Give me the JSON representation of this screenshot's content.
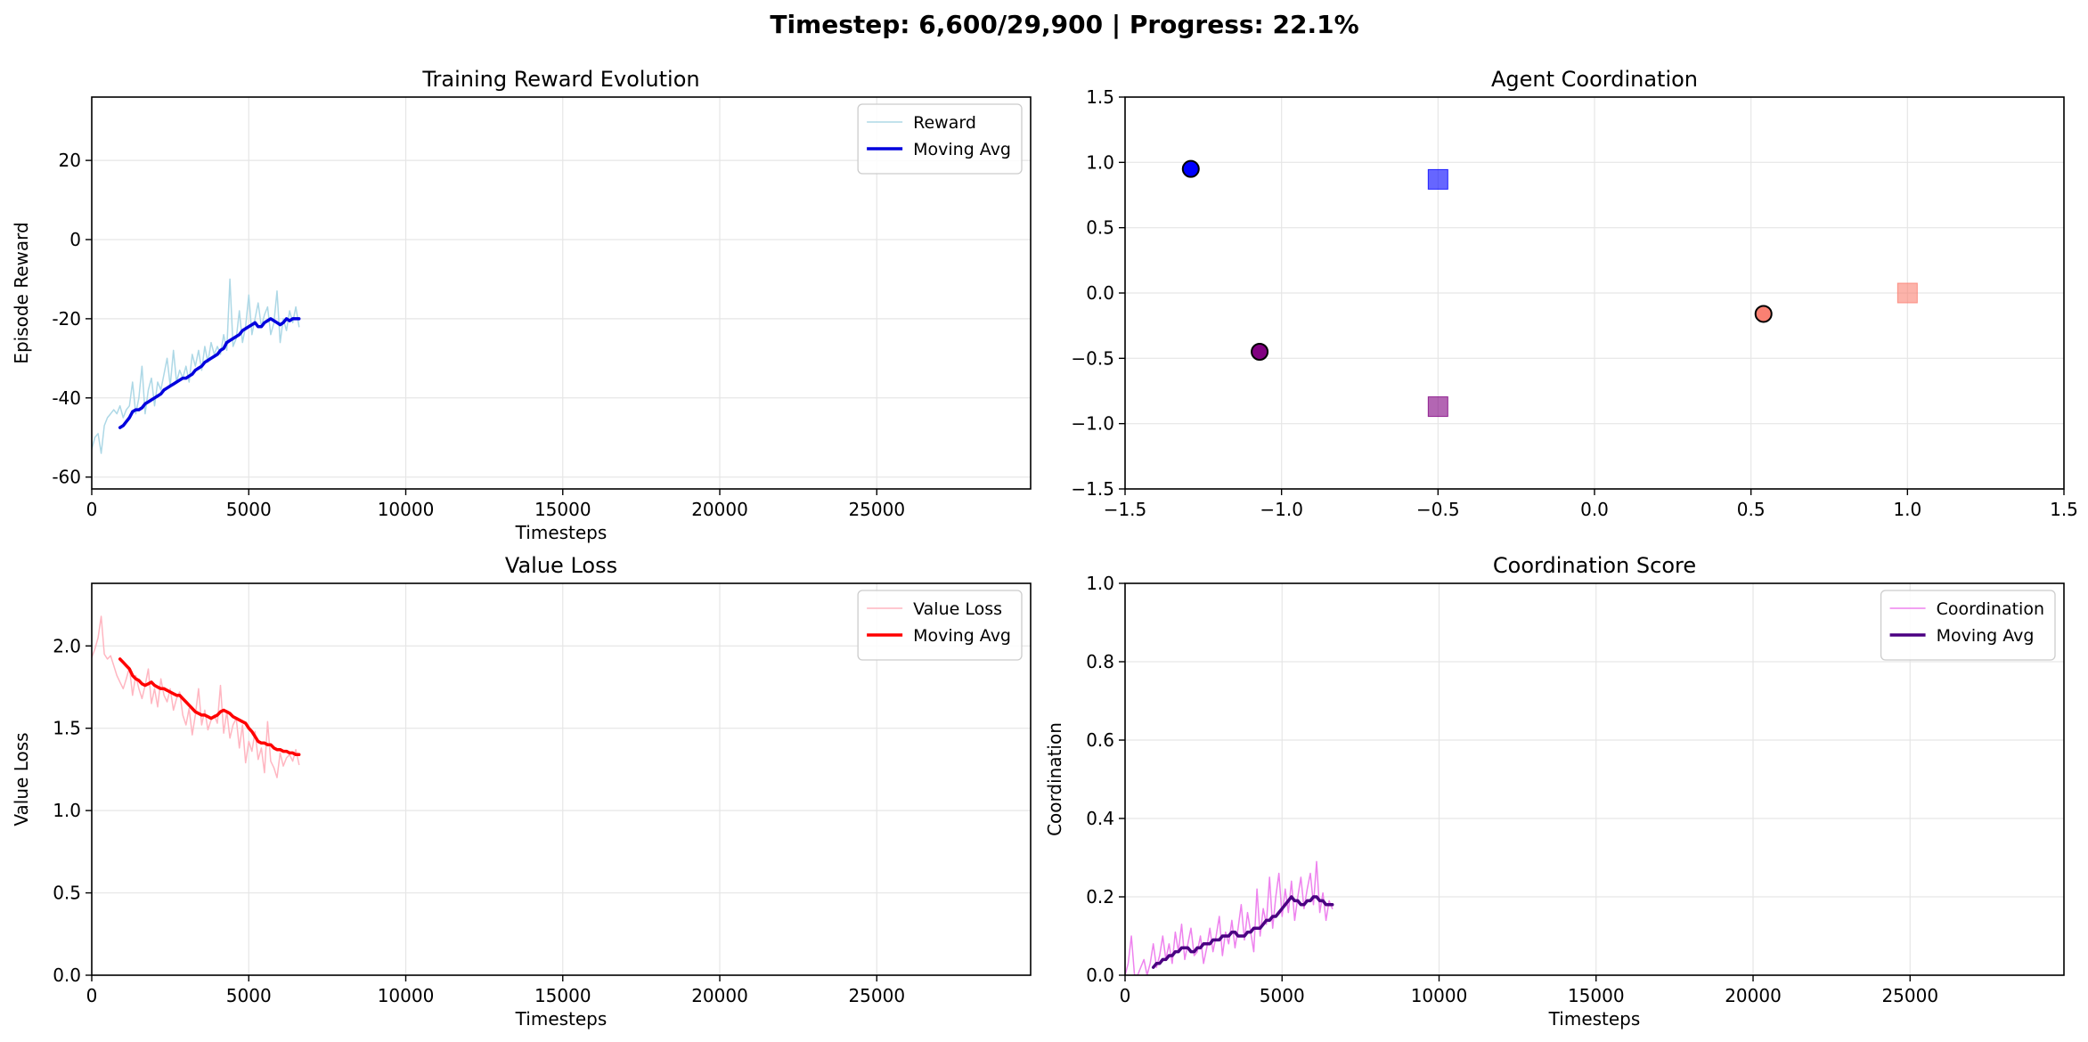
{
  "figure": {
    "suptitle": "Timestep: 6,600/29,900 | Progress: 22.1%"
  },
  "chart_data": [
    {
      "id": "reward",
      "type": "line",
      "title": "Training Reward Evolution",
      "xlabel": "Timesteps",
      "ylabel": "Episode Reward",
      "xlim": [
        0,
        29900
      ],
      "ylim": [
        -63,
        36
      ],
      "xticks": [
        0,
        5000,
        10000,
        15000,
        20000,
        25000
      ],
      "yticks": [
        -60,
        -40,
        -20,
        0,
        20
      ],
      "grid": true,
      "legend_loc": "top-right",
      "series": [
        {
          "name": "Reward",
          "color": "#add8e6",
          "width": 1.5,
          "x": [
            0,
            100,
            200,
            300,
            400,
            500,
            600,
            700,
            800,
            900,
            1000,
            1100,
            1200,
            1300,
            1400,
            1500,
            1600,
            1700,
            1800,
            1900,
            2000,
            2100,
            2200,
            2300,
            2400,
            2500,
            2600,
            2700,
            2800,
            2900,
            3000,
            3100,
            3200,
            3300,
            3400,
            3500,
            3600,
            3700,
            3800,
            3900,
            4000,
            4100,
            4200,
            4300,
            4400,
            4500,
            4600,
            4700,
            4800,
            4900,
            5000,
            5100,
            5200,
            5300,
            5400,
            5500,
            5600,
            5700,
            5800,
            5900,
            6000,
            6100,
            6200,
            6300,
            6400,
            6500,
            6600
          ],
          "y": [
            -53,
            -50,
            -49,
            -54,
            -47,
            -45,
            -44,
            -43,
            -44,
            -42,
            -45,
            -43,
            -42,
            -36,
            -44,
            -40,
            -32,
            -44,
            -38,
            -35,
            -42,
            -36,
            -38,
            -34,
            -30,
            -37,
            -28,
            -36,
            -33,
            -35,
            -32,
            -36,
            -29,
            -32,
            -28,
            -33,
            -27,
            -31,
            -26,
            -29,
            -27,
            -29,
            -24,
            -28,
            -10,
            -27,
            -25,
            -18,
            -26,
            -22,
            -14,
            -24,
            -20,
            -16,
            -22,
            -19,
            -17,
            -24,
            -21,
            -13,
            -26,
            -20,
            -23,
            -18,
            -21,
            -17,
            -22
          ]
        },
        {
          "name": "Moving Avg",
          "color": "#0000dd",
          "width": 3.5,
          "x": [
            900,
            1000,
            1100,
            1200,
            1300,
            1400,
            1500,
            1600,
            1700,
            1800,
            1900,
            2000,
            2100,
            2200,
            2300,
            2400,
            2500,
            2600,
            2700,
            2800,
            2900,
            3000,
            3100,
            3200,
            3300,
            3400,
            3500,
            3600,
            3700,
            3800,
            3900,
            4000,
            4100,
            4200,
            4300,
            4400,
            4500,
            4600,
            4700,
            4800,
            4900,
            5000,
            5100,
            5200,
            5300,
            5400,
            5500,
            5600,
            5700,
            5800,
            5900,
            6000,
            6100,
            6200,
            6300,
            6400,
            6500,
            6600
          ],
          "y": [
            -47.5,
            -47,
            -46,
            -45,
            -43.5,
            -43,
            -43,
            -42.5,
            -41.5,
            -41,
            -40.5,
            -40,
            -39.5,
            -39,
            -38,
            -37.5,
            -37,
            -36.5,
            -36,
            -35.5,
            -35,
            -35,
            -34.5,
            -34,
            -33,
            -32.5,
            -32,
            -31,
            -30.5,
            -30,
            -29.5,
            -29,
            -28,
            -27.5,
            -26,
            -25.5,
            -25,
            -24.5,
            -24,
            -23,
            -22.5,
            -22,
            -21.5,
            -21,
            -22,
            -22,
            -21,
            -20.5,
            -20,
            -20.5,
            -21,
            -21.5,
            -21,
            -20,
            -20.5,
            -20,
            -20,
            -20
          ]
        }
      ]
    },
    {
      "id": "coord",
      "type": "scatter",
      "title": "Agent Coordination",
      "xlim": [
        -1.5,
        1.5
      ],
      "ylim": [
        -1.5,
        1.5
      ],
      "xticks": [
        -1.5,
        -1.0,
        -0.5,
        0.0,
        0.5,
        1.0,
        1.5
      ],
      "yticks": [
        -1.5,
        -1.0,
        -0.5,
        0.0,
        0.5,
        1.0,
        1.5
      ],
      "xtick_labels": [
        "−1.5",
        "−1.0",
        "−0.5",
        "0.0",
        "0.5",
        "1.0",
        "1.5"
      ],
      "ytick_labels": [
        "−1.5",
        "−1.0",
        "−0.5",
        "0.0",
        "0.5",
        "1.0",
        "1.5"
      ],
      "grid": true,
      "points": [
        {
          "shape": "square",
          "x": -0.5,
          "y": 0.87,
          "color": "#0000ff",
          "alpha": 0.6
        },
        {
          "shape": "square",
          "x": -0.5,
          "y": -0.87,
          "color": "#800080",
          "alpha": 0.6
        },
        {
          "shape": "square",
          "x": 1.0,
          "y": 0.0,
          "color": "#fa8072",
          "alpha": 0.6
        },
        {
          "shape": "circle",
          "x": -1.29,
          "y": 0.95,
          "color": "#0000ff",
          "alpha": 1.0
        },
        {
          "shape": "circle",
          "x": -1.07,
          "y": -0.45,
          "color": "#800080",
          "alpha": 1.0
        },
        {
          "shape": "circle",
          "x": 0.54,
          "y": -0.16,
          "color": "#fa8072",
          "alpha": 1.0
        }
      ]
    },
    {
      "id": "loss",
      "type": "line",
      "title": "Value Loss",
      "xlabel": "Timesteps",
      "ylabel": "Value Loss",
      "xlim": [
        0,
        29900
      ],
      "ylim": [
        0,
        2.38
      ],
      "xticks": [
        0,
        5000,
        10000,
        15000,
        20000,
        25000
      ],
      "yticks": [
        0.0,
        0.5,
        1.0,
        1.5,
        2.0
      ],
      "ytick_labels": [
        "0.0",
        "0.5",
        "1.0",
        "1.5",
        "2.0"
      ],
      "grid": true,
      "legend_loc": "top-right",
      "series": [
        {
          "name": "Value Loss",
          "color": "#ffb6c1",
          "width": 1.5,
          "x": [
            0,
            100,
            200,
            300,
            400,
            500,
            600,
            700,
            800,
            900,
            1000,
            1100,
            1200,
            1300,
            1400,
            1500,
            1600,
            1700,
            1800,
            1900,
            2000,
            2100,
            2200,
            2300,
            2400,
            2500,
            2600,
            2700,
            2800,
            2900,
            3000,
            3100,
            3200,
            3300,
            3400,
            3500,
            3600,
            3700,
            3800,
            3900,
            4000,
            4100,
            4200,
            4300,
            4400,
            4500,
            4600,
            4700,
            4800,
            4900,
            5000,
            5100,
            5200,
            5300,
            5400,
            5500,
            5600,
            5700,
            5800,
            5900,
            6000,
            6100,
            6200,
            6300,
            6400,
            6500,
            6600
          ],
          "y": [
            1.93,
            1.98,
            2.05,
            2.18,
            1.95,
            1.92,
            1.94,
            1.88,
            1.82,
            1.78,
            1.74,
            1.8,
            1.87,
            1.7,
            1.82,
            1.74,
            1.68,
            1.76,
            1.86,
            1.65,
            1.74,
            1.63,
            1.8,
            1.7,
            1.66,
            1.74,
            1.61,
            1.68,
            1.72,
            1.58,
            1.52,
            1.62,
            1.46,
            1.58,
            1.74,
            1.52,
            1.61,
            1.49,
            1.55,
            1.58,
            1.53,
            1.76,
            1.47,
            1.6,
            1.44,
            1.52,
            1.56,
            1.38,
            1.52,
            1.29,
            1.42,
            1.36,
            1.48,
            1.31,
            1.38,
            1.23,
            1.54,
            1.3,
            1.26,
            1.2,
            1.35,
            1.27,
            1.32,
            1.34,
            1.3,
            1.37,
            1.28
          ]
        },
        {
          "name": "Moving Avg",
          "color": "#ff0000",
          "width": 3.5,
          "x": [
            900,
            1000,
            1100,
            1200,
            1300,
            1400,
            1500,
            1600,
            1700,
            1800,
            1900,
            2000,
            2100,
            2200,
            2300,
            2400,
            2500,
            2600,
            2700,
            2800,
            2900,
            3000,
            3100,
            3200,
            3300,
            3400,
            3500,
            3600,
            3700,
            3800,
            3900,
            4000,
            4100,
            4200,
            4300,
            4400,
            4500,
            4600,
            4700,
            4800,
            4900,
            5000,
            5100,
            5200,
            5300,
            5400,
            5500,
            5600,
            5700,
            5800,
            5900,
            6000,
            6100,
            6200,
            6300,
            6400,
            6500,
            6600
          ],
          "y": [
            1.92,
            1.9,
            1.88,
            1.86,
            1.82,
            1.8,
            1.79,
            1.77,
            1.76,
            1.77,
            1.78,
            1.76,
            1.75,
            1.74,
            1.74,
            1.73,
            1.72,
            1.71,
            1.7,
            1.7,
            1.68,
            1.66,
            1.64,
            1.62,
            1.6,
            1.59,
            1.58,
            1.58,
            1.57,
            1.56,
            1.57,
            1.58,
            1.6,
            1.61,
            1.6,
            1.59,
            1.57,
            1.56,
            1.55,
            1.54,
            1.53,
            1.5,
            1.48,
            1.45,
            1.42,
            1.41,
            1.41,
            1.4,
            1.4,
            1.38,
            1.37,
            1.37,
            1.36,
            1.36,
            1.35,
            1.35,
            1.34,
            1.34
          ]
        }
      ]
    },
    {
      "id": "score",
      "type": "line",
      "title": "Coordination Score",
      "xlabel": "Timesteps",
      "ylabel": "Coordination",
      "xlim": [
        0,
        29900
      ],
      "ylim": [
        0,
        1.0
      ],
      "xticks": [
        0,
        5000,
        10000,
        15000,
        20000,
        25000
      ],
      "yticks": [
        0.0,
        0.2,
        0.4,
        0.6,
        0.8,
        1.0
      ],
      "ytick_labels": [
        "0.0",
        "0.2",
        "0.4",
        "0.6",
        "0.8",
        "1.0"
      ],
      "grid": true,
      "legend_loc": "top-right",
      "series": [
        {
          "name": "Coordination",
          "color": "#ee82ee",
          "width": 1.5,
          "x": [
            0,
            100,
            200,
            300,
            400,
            500,
            600,
            700,
            800,
            900,
            1000,
            1100,
            1200,
            1300,
            1400,
            1500,
            1600,
            1700,
            1800,
            1900,
            2000,
            2100,
            2200,
            2300,
            2400,
            2500,
            2600,
            2700,
            2800,
            2900,
            3000,
            3100,
            3200,
            3300,
            3400,
            3500,
            3600,
            3700,
            3800,
            3900,
            4000,
            4100,
            4200,
            4300,
            4400,
            4500,
            4600,
            4700,
            4800,
            4900,
            5000,
            5100,
            5200,
            5300,
            5400,
            5500,
            5600,
            5700,
            5800,
            5900,
            6000,
            6100,
            6200,
            6300,
            6400,
            6500,
            6600
          ],
          "y": [
            0.0,
            0.03,
            0.1,
            0.0,
            0.0,
            0.02,
            0.04,
            0.0,
            0.03,
            0.08,
            0.02,
            0.05,
            0.1,
            0.04,
            0.08,
            0.03,
            0.11,
            0.06,
            0.13,
            0.04,
            0.08,
            0.12,
            0.05,
            0.06,
            0.1,
            0.03,
            0.07,
            0.12,
            0.06,
            0.1,
            0.15,
            0.05,
            0.11,
            0.08,
            0.14,
            0.07,
            0.12,
            0.18,
            0.09,
            0.16,
            0.11,
            0.06,
            0.22,
            0.1,
            0.17,
            0.13,
            0.25,
            0.12,
            0.2,
            0.26,
            0.15,
            0.22,
            0.16,
            0.24,
            0.14,
            0.2,
            0.25,
            0.17,
            0.22,
            0.26,
            0.18,
            0.29,
            0.16,
            0.21,
            0.14,
            0.19,
            0.17
          ]
        },
        {
          "name": "Moving Avg",
          "color": "#4b0082",
          "width": 3.5,
          "x": [
            900,
            1000,
            1100,
            1200,
            1300,
            1400,
            1500,
            1600,
            1700,
            1800,
            1900,
            2000,
            2100,
            2200,
            2300,
            2400,
            2500,
            2600,
            2700,
            2800,
            2900,
            3000,
            3100,
            3200,
            3300,
            3400,
            3500,
            3600,
            3700,
            3800,
            3900,
            4000,
            4100,
            4200,
            4300,
            4400,
            4500,
            4600,
            4700,
            4800,
            4900,
            5000,
            5100,
            5200,
            5300,
            5400,
            5500,
            5600,
            5700,
            5800,
            5900,
            6000,
            6100,
            6200,
            6300,
            6400,
            6500,
            6600
          ],
          "y": [
            0.02,
            0.03,
            0.03,
            0.04,
            0.04,
            0.05,
            0.05,
            0.06,
            0.06,
            0.07,
            0.07,
            0.07,
            0.06,
            0.06,
            0.07,
            0.07,
            0.08,
            0.08,
            0.08,
            0.09,
            0.09,
            0.09,
            0.1,
            0.1,
            0.1,
            0.11,
            0.11,
            0.1,
            0.1,
            0.1,
            0.11,
            0.11,
            0.12,
            0.12,
            0.12,
            0.13,
            0.14,
            0.14,
            0.15,
            0.15,
            0.16,
            0.17,
            0.18,
            0.19,
            0.2,
            0.19,
            0.19,
            0.18,
            0.18,
            0.19,
            0.19,
            0.2,
            0.2,
            0.19,
            0.19,
            0.18,
            0.18,
            0.18
          ]
        }
      ]
    }
  ]
}
